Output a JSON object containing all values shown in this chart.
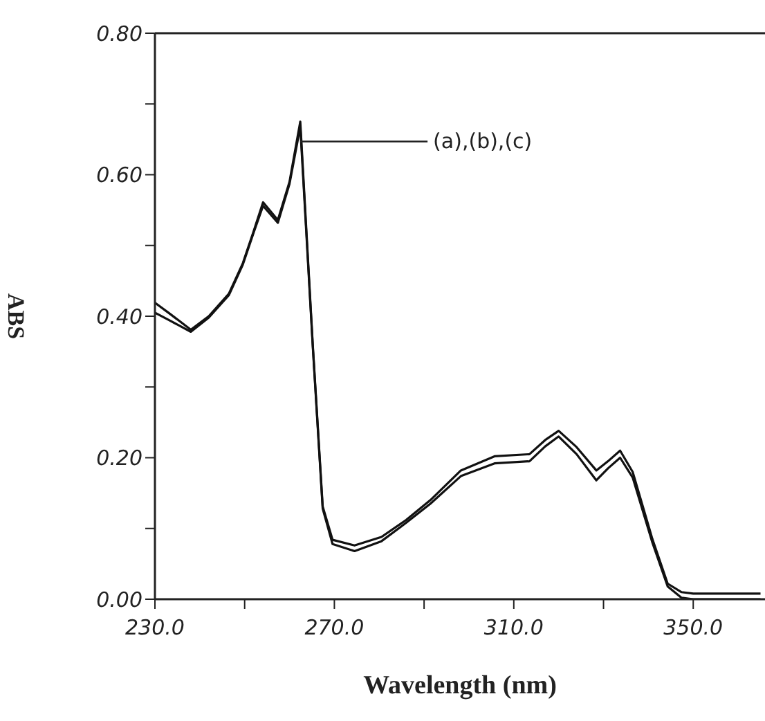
{
  "chart_data": {
    "type": "line",
    "xlabel": "Wavelength (nm)",
    "ylabel": "ABS",
    "x": [
      230,
      233,
      238,
      242,
      246.5,
      249.6,
      252,
      254.1,
      257.4,
      260,
      262.4,
      265.2,
      267.4,
      269.6,
      274.5,
      280.5,
      286,
      291.4,
      298.2,
      305.7,
      313.5,
      317,
      320,
      324,
      328.4,
      331,
      333.7,
      336.5,
      340.9,
      344.3,
      347.4,
      350,
      356,
      365
    ],
    "series": [
      {
        "color": "#111111",
        "values": [
          0.419,
          0.405,
          0.381,
          0.4,
          0.432,
          0.475,
          0.52,
          0.561,
          0.536,
          0.59,
          0.675,
          0.358,
          0.131,
          0.084,
          0.076,
          0.088,
          0.112,
          0.14,
          0.182,
          0.202,
          0.205,
          0.225,
          0.238,
          0.215,
          0.182,
          0.195,
          0.21,
          0.18,
          0.085,
          0.022,
          0.01,
          0.008,
          0.008,
          0.008
        ]
      },
      {
        "color": "#111111",
        "values": [
          0.405,
          0.395,
          0.378,
          0.398,
          0.43,
          0.473,
          0.518,
          0.556,
          0.532,
          0.587,
          0.668,
          0.356,
          0.128,
          0.078,
          0.068,
          0.082,
          0.108,
          0.135,
          0.174,
          0.192,
          0.195,
          0.216,
          0.23,
          0.205,
          0.168,
          0.185,
          0.2,
          0.172,
          0.08,
          0.018,
          0.002,
          0,
          0,
          0
        ]
      }
    ],
    "xlim": [
      230,
      366
    ],
    "xticks": [
      {
        "value": 230,
        "label": "230.0"
      },
      {
        "value": 250,
        "label": null
      },
      {
        "value": 270,
        "label": "270.0"
      },
      {
        "value": 290,
        "label": null
      },
      {
        "value": 310,
        "label": "310.0"
      },
      {
        "value": 330,
        "label": null
      },
      {
        "value": 350,
        "label": "350.0"
      }
    ],
    "ylim": [
      0,
      0.8
    ],
    "yticks": [
      {
        "value": 0,
        "label": "0.00"
      },
      {
        "value": 0.1,
        "label": null
      },
      {
        "value": 0.2,
        "label": "0.20"
      },
      {
        "value": 0.3,
        "label": null
      },
      {
        "value": 0.4,
        "label": "0.40"
      },
      {
        "value": 0.5,
        "label": null
      },
      {
        "value": 0.6,
        "label": "0.60"
      },
      {
        "value": 0.7,
        "label": null
      },
      {
        "value": 0.8,
        "label": "0.80"
      }
    ],
    "annotations": [
      {
        "text": "(a),(b),(c)",
        "x": 262.4,
        "y": 0.647
      }
    ],
    "marker": "none",
    "line_style": "solid"
  }
}
